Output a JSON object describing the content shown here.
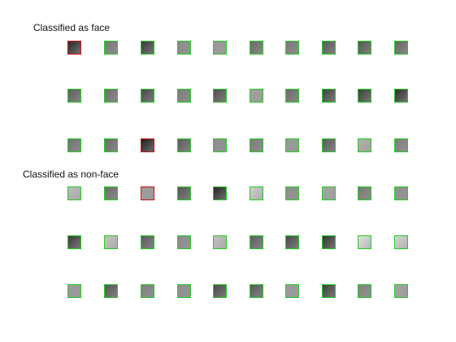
{
  "sections": [
    {
      "title": "Classified as face",
      "rows": [
        [
          {
            "status": "misclassified",
            "fill": "#2a2a2a"
          },
          {
            "status": "correct",
            "fill": "#777777"
          },
          {
            "status": "correct",
            "fill": "#3b3b3b"
          },
          {
            "status": "correct",
            "fill": "#8a8a8a"
          },
          {
            "status": "correct",
            "fill": "#9a9a9a"
          },
          {
            "status": "correct",
            "fill": "#6a6a6a"
          },
          {
            "status": "correct",
            "fill": "#7a7a7a"
          },
          {
            "status": "correct",
            "fill": "#5a5a5a"
          },
          {
            "status": "correct",
            "fill": "#555555"
          },
          {
            "status": "correct",
            "fill": "#666666"
          }
        ],
        [
          {
            "status": "correct",
            "fill": "#5d5d5d"
          },
          {
            "status": "correct",
            "fill": "#6e6e6e"
          },
          {
            "status": "correct",
            "fill": "#4a4a4a"
          },
          {
            "status": "correct",
            "fill": "#7d7d7d"
          },
          {
            "status": "correct",
            "fill": "#4f4f4f"
          },
          {
            "status": "correct",
            "fill": "#a0a0a0"
          },
          {
            "status": "correct",
            "fill": "#6b6b6b"
          },
          {
            "status": "correct",
            "fill": "#444444"
          },
          {
            "status": "correct",
            "fill": "#3e3e3e"
          },
          {
            "status": "correct",
            "fill": "#2f2f2f"
          }
        ],
        [
          {
            "status": "correct",
            "fill": "#727272"
          },
          {
            "status": "correct",
            "fill": "#6a6a6a"
          },
          {
            "status": "misclassified",
            "fill": "#1f1f1f"
          },
          {
            "status": "correct",
            "fill": "#5c5c5c"
          },
          {
            "status": "correct",
            "fill": "#8c8c8c"
          },
          {
            "status": "correct",
            "fill": "#7c7c7c"
          },
          {
            "status": "correct",
            "fill": "#999999"
          },
          {
            "status": "correct",
            "fill": "#5a5a5a"
          },
          {
            "status": "correct",
            "fill": "#b0b0b0"
          },
          {
            "status": "correct",
            "fill": "#7f7f7f"
          }
        ]
      ]
    },
    {
      "title": "Classified as non-face",
      "rows": [
        [
          {
            "status": "correct",
            "fill": "#bdbdbd"
          },
          {
            "status": "correct",
            "fill": "#6c6c6c"
          },
          {
            "status": "misclassified",
            "fill": "#9d9d9d"
          },
          {
            "status": "correct",
            "fill": "#565656"
          },
          {
            "status": "correct",
            "fill": "#262626"
          },
          {
            "status": "correct",
            "fill": "#cfcfcf"
          },
          {
            "status": "correct",
            "fill": "#8d8d8d"
          },
          {
            "status": "correct",
            "fill": "#a5a5a5"
          },
          {
            "status": "correct",
            "fill": "#787878"
          },
          {
            "status": "correct",
            "fill": "#8f8f8f"
          }
        ],
        [
          {
            "status": "correct",
            "fill": "#3d3d3d"
          },
          {
            "status": "correct",
            "fill": "#c4c4c4"
          },
          {
            "status": "correct",
            "fill": "#5b5b5b"
          },
          {
            "status": "correct",
            "fill": "#8b8b8b"
          },
          {
            "status": "correct",
            "fill": "#c2c2c2"
          },
          {
            "status": "correct",
            "fill": "#606060"
          },
          {
            "status": "correct",
            "fill": "#4b4b4b"
          },
          {
            "status": "correct",
            "fill": "#343434"
          },
          {
            "status": "correct",
            "fill": "#e2e2e2"
          },
          {
            "status": "correct",
            "fill": "#d6d6d6"
          }
        ],
        [
          {
            "status": "correct",
            "fill": "#9b9b9b"
          },
          {
            "status": "correct",
            "fill": "#555555"
          },
          {
            "status": "correct",
            "fill": "#7e7e7e"
          },
          {
            "status": "correct",
            "fill": "#8e8e8e"
          },
          {
            "status": "correct",
            "fill": "#4a4a4a"
          },
          {
            "status": "correct",
            "fill": "#595959"
          },
          {
            "status": "correct",
            "fill": "#9a9a9a"
          },
          {
            "status": "correct",
            "fill": "#3f3f3f"
          },
          {
            "status": "correct",
            "fill": "#828282"
          },
          {
            "status": "correct",
            "fill": "#a3a3a3"
          }
        ]
      ]
    }
  ]
}
